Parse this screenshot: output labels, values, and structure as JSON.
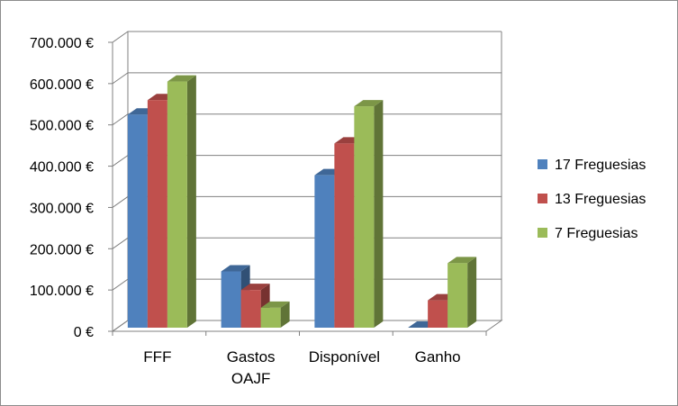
{
  "chart_data": {
    "type": "bar",
    "title": "",
    "xlabel": "",
    "ylabel": "",
    "categories": [
      [
        "FFF"
      ],
      [
        "Gastos",
        "OAJF"
      ],
      [
        "Disponível"
      ],
      [
        "Ganho"
      ]
    ],
    "series": [
      {
        "name": "17 Freguesias",
        "color": "#4f81bd",
        "values": [
          525000,
          145000,
          378000,
          0
        ]
      },
      {
        "name": "13 Freguesias",
        "color": "#c0504d",
        "values": [
          560000,
          100000,
          455000,
          75000
        ]
      },
      {
        "name": "7 Freguesias",
        "color": "#9bbb59",
        "values": [
          605000,
          57000,
          545000,
          165000
        ]
      }
    ],
    "ylim": [
      0,
      700000
    ],
    "yticks": [
      0,
      100000,
      200000,
      300000,
      400000,
      500000,
      600000,
      700000
    ],
    "ytick_labels": [
      "0 €",
      "100.000 €",
      "200.000 €",
      "300.000 €",
      "400.000 €",
      "500.000 €",
      "600.000 €",
      "700.000 €"
    ],
    "grid": true,
    "legend_position": "right"
  }
}
